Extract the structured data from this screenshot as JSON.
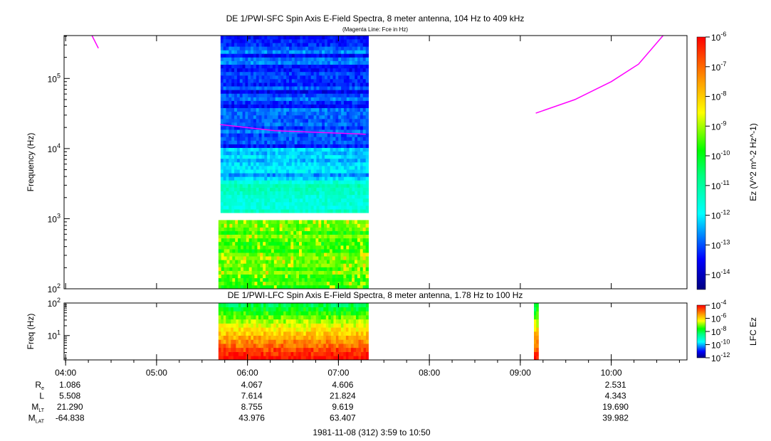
{
  "chart_data": [
    {
      "type": "heatmap",
      "title": "DE 1/PWI-SFC  Spin Axis E-Field Spectra, 8 meter antenna, 104 Hz to 409 kHz",
      "subtitle": "(Magenta Line: Fce in Hz)",
      "ylabel": "Frequency (Hz)",
      "yscale": "log",
      "ylim": [
        100,
        409000
      ],
      "yticks": [
        "10^2",
        "10^3",
        "10^4",
        "10^5"
      ],
      "data_interval_hours": [
        5.68,
        7.33
      ],
      "colorbar": {
        "label": "Ez (V^2 m^-2 Hz^-1)",
        "ticks": [
          "10^-6",
          "10^-7",
          "10^-8",
          "10^-9",
          "10^-10",
          "10^-11",
          "10^-12",
          "10^-13",
          "10^-14"
        ],
        "range_log": [
          -14.5,
          -6
        ]
      },
      "fce_line": [
        {
          "x": [
            4.29,
            4.36
          ],
          "y": [
            409000,
            270000
          ]
        },
        {
          "x": [
            5.7,
            6.3,
            7.3
          ],
          "y": [
            22000,
            18000,
            16000
          ]
        },
        {
          "x": [
            9.17,
            9.6,
            10.0,
            10.3,
            10.57
          ],
          "y": [
            32000,
            50000,
            90000,
            160000,
            409000
          ]
        }
      ]
    },
    {
      "type": "heatmap",
      "title": "DE 1/PWI-LFC  Spin Axis E-Field Spectra, 8 meter antenna, 1.78 Hz to 100 Hz",
      "ylabel": "Freq (Hz)",
      "yscale": "log",
      "ylim": [
        1.78,
        100
      ],
      "yticks": [
        "10^1",
        "10^2"
      ],
      "data_intervals_hours": [
        [
          5.68,
          7.33
        ],
        [
          9.15,
          9.2
        ]
      ],
      "colorbar": {
        "label": "LFC Ez",
        "ticks": [
          "10^-4",
          "10^-6",
          "10^-8",
          "10^-10",
          "10^-12"
        ],
        "range_log": [
          -12,
          -4
        ]
      }
    }
  ],
  "xaxis": {
    "ticks": [
      "04:00",
      "05:00",
      "06:00",
      "07:00",
      "08:00",
      "09:00",
      "10:00"
    ],
    "range_hours": [
      3.983,
      10.833
    ],
    "footer": "1981-11-08 (312) 3:59 to 10:50"
  },
  "ephemeris": {
    "labels": [
      {
        "main": "R",
        "sub": "e"
      },
      {
        "main": "L",
        "sub": ""
      },
      {
        "main": "M",
        "sub": "LT"
      },
      {
        "main": "M",
        "sub": "LAT"
      }
    ],
    "columns": [
      {
        "time": "04:00",
        "values": [
          "1.086",
          "5.508",
          "21.290",
          "-64.838"
        ]
      },
      {
        "time": "06:00",
        "values": [
          "4.067",
          "7.614",
          "8.755",
          "43.976"
        ]
      },
      {
        "time": "07:00",
        "values": [
          "4.606",
          "21.824",
          "9.619",
          "63.407"
        ]
      },
      {
        "time": "10:00",
        "values": [
          "2.531",
          "4.343",
          "19.690",
          "39.982"
        ]
      }
    ]
  },
  "colors": {
    "fce": "#ff00ff"
  }
}
